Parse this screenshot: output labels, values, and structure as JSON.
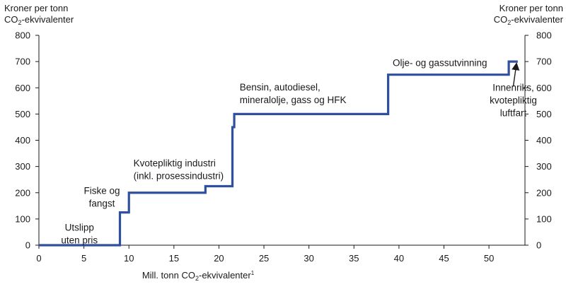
{
  "chart_data": {
    "type": "line",
    "step": true,
    "title": "",
    "ylabel_left": [
      "Kroner per tonn",
      "CO",
      "2",
      "-ekvivalenter"
    ],
    "ylabel_right": [
      "Kroner per tonn",
      "CO",
      "2",
      "-ekvivalenter"
    ],
    "xlabel": [
      "Mill. tonn CO",
      "2",
      "-ekvivalenter",
      "1"
    ],
    "xlim": [
      0,
      54
    ],
    "ylim": [
      0,
      800
    ],
    "x_ticks": [
      0,
      5,
      10,
      15,
      20,
      25,
      30,
      35,
      40,
      45,
      50
    ],
    "y_ticks": [
      0,
      100,
      200,
      300,
      400,
      500,
      600,
      700,
      800
    ],
    "grid": false,
    "legend": "none",
    "series_color": "#2f4f9f",
    "series": [
      {
        "points": [
          [
            0,
            0
          ],
          [
            9.0,
            0
          ],
          [
            9.0,
            125
          ],
          [
            10.0,
            125
          ],
          [
            10.0,
            200
          ],
          [
            18.5,
            200
          ],
          [
            18.5,
            225
          ],
          [
            21.5,
            225
          ],
          [
            21.5,
            450
          ],
          [
            21.7,
            450
          ],
          [
            21.7,
            500
          ],
          [
            38.8,
            500
          ],
          [
            38.8,
            650
          ],
          [
            52.2,
            650
          ],
          [
            52.2,
            700
          ],
          [
            53.2,
            700
          ]
        ]
      }
    ],
    "annotations": [
      {
        "lines": [
          "Utslipp",
          "uten pris"
        ],
        "x": 4.5,
        "y": 55,
        "align": "middle"
      },
      {
        "lines": [
          "Fiske og",
          "fangst"
        ],
        "x": 7.0,
        "y": 195,
        "align": "middle"
      },
      {
        "lines": [
          "Kvotepliktig industri",
          "(inkl. prosessindustri)"
        ],
        "x": 10.5,
        "y": 300,
        "align": "start"
      },
      {
        "lines": [
          "Bensin, autodiesel,",
          "mineralolje, gass og HFK"
        ],
        "x": 22.3,
        "y": 590,
        "align": "start"
      },
      {
        "lines": [
          "Olje- og  gassutvinning"
        ],
        "x": 39.3,
        "y": 683,
        "align": "start"
      },
      {
        "lines": [
          "Innenriks,",
          "kvotepliktig",
          "luftfart"
        ],
        "x": 52.7,
        "y": 588,
        "align": "middle"
      }
    ],
    "arrow": {
      "from": [
        52.7,
        605
      ],
      "to": [
        53.05,
        690
      ]
    }
  }
}
